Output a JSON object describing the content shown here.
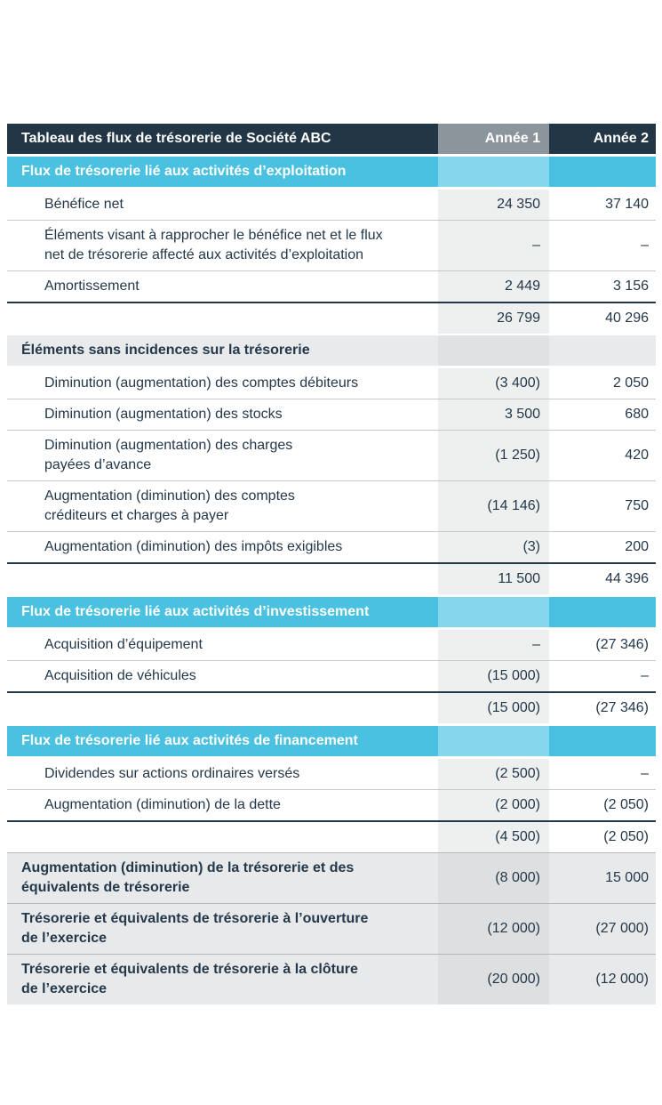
{
  "table": {
    "title": "Tableau des flux de trésorerie de Société ABC",
    "columns": [
      "Année 1",
      "Année 2"
    ],
    "colors": {
      "header_bg": "#223645",
      "header_year1_bg": "#8d959c",
      "cyan_section_bg": "#4ac1e1",
      "cyan_section_year1_bg": "#84d7ec",
      "gray_section_bg": "#e9eaeb",
      "year1_column_band": "#eef0f0",
      "summary_bg": "#e8e9ea",
      "text_navy": "#24384a",
      "total_border": "#22374a"
    },
    "rows": [
      {
        "type": "section-cyan",
        "label": "Flux de trésorerie lié aux activités d’exploitation",
        "y1": "",
        "y2": ""
      },
      {
        "type": "detail",
        "label": "Bénéfice net",
        "y1": "24 350",
        "y2": "37 140"
      },
      {
        "type": "detail",
        "label": "Éléments visant à rapprocher le bénéfice net et le flux\nnet de trésorerie affecté aux activités d’exploitation",
        "y1": "–",
        "y2": "–"
      },
      {
        "type": "detail",
        "label": "Amortissement",
        "y1": "2 449",
        "y2": "3 156"
      },
      {
        "type": "total",
        "label": "",
        "y1": "26 799",
        "y2": "40 296"
      },
      {
        "type": "section-gray",
        "label": "Éléments sans incidences sur la trésorerie",
        "y1": "",
        "y2": ""
      },
      {
        "type": "detail",
        "label": "Diminution (augmentation) des comptes débiteurs",
        "y1": "(3 400)",
        "y2": "2 050"
      },
      {
        "type": "detail",
        "label": "Diminution (augmentation) des stocks",
        "y1": "3 500",
        "y2": "680"
      },
      {
        "type": "detail",
        "label": "Diminution (augmentation) des charges\npayées d’avance",
        "y1": "(1 250)",
        "y2": "420"
      },
      {
        "type": "detail",
        "label": "Augmentation (diminution) des comptes\ncréditeurs et charges à payer",
        "y1": "(14 146)",
        "y2": "750"
      },
      {
        "type": "detail",
        "label": "Augmentation (diminution) des impôts exigibles",
        "y1": "(3)",
        "y2": "200"
      },
      {
        "type": "total",
        "label": "",
        "y1": "11 500",
        "y2": "44 396"
      },
      {
        "type": "section-cyan",
        "label": "Flux de trésorerie lié aux activités d’investissement",
        "y1": "",
        "y2": ""
      },
      {
        "type": "detail",
        "label": "Acquisition d’équipement",
        "y1": "–",
        "y2": "(27 346)"
      },
      {
        "type": "detail",
        "label": "Acquisition de véhicules",
        "y1": "(15 000)",
        "y2": "–"
      },
      {
        "type": "total",
        "label": "",
        "y1": "(15 000)",
        "y2": "(27 346)"
      },
      {
        "type": "section-cyan",
        "label": "Flux de trésorerie lié aux activités de financement",
        "y1": "",
        "y2": ""
      },
      {
        "type": "detail",
        "label": "Dividendes sur actions ordinaires versés",
        "y1": "(2 500)",
        "y2": "–"
      },
      {
        "type": "detail",
        "label": "Augmentation (diminution) de la dette",
        "y1": "(2 000)",
        "y2": "(2 050)"
      },
      {
        "type": "total",
        "label": "",
        "y1": "(4 500)",
        "y2": "(2 050)"
      },
      {
        "type": "summary",
        "label": "Augmentation (diminution) de la trésorerie et des\néquivalents de trésorerie",
        "y1": "(8 000)",
        "y2": "15 000"
      },
      {
        "type": "summary",
        "label": "Trésorerie et équivalents de trésorerie à l’ouverture\nde l’exercice",
        "y1": "(12 000)",
        "y2": "(27 000)"
      },
      {
        "type": "summary",
        "label": "Trésorerie et équivalents de trésorerie à la clôture\nde l’exercice",
        "y1": "(20 000)",
        "y2": "(12 000)"
      }
    ]
  }
}
